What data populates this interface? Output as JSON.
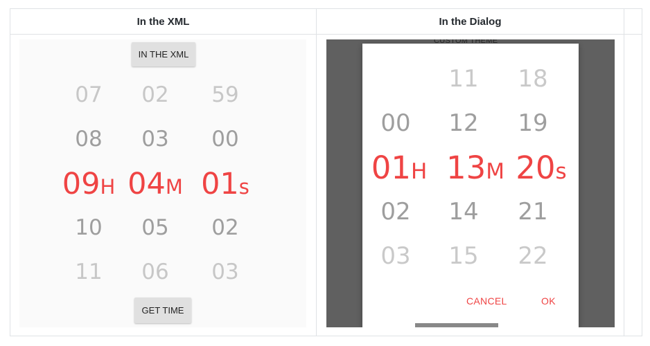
{
  "table": {
    "headers": [
      "In the XML",
      "In the Dialog"
    ]
  },
  "left": {
    "top_button": "IN THE XML",
    "bottom_button": "GET TIME",
    "hours": {
      "above2": "07",
      "above1": "08",
      "selected": "09",
      "below1": "10",
      "below2": "11",
      "unit": "H"
    },
    "minutes": {
      "above2": "02",
      "above1": "03",
      "selected": "04",
      "below1": "05",
      "below2": "06",
      "unit": "M"
    },
    "seconds": {
      "above2": "59",
      "above1": "00",
      "selected": "01",
      "below1": "02",
      "below2": "03",
      "unit": "s"
    }
  },
  "right": {
    "background_text": "CUSTOM THEME",
    "hours": {
      "above1": "00",
      "selected": "01",
      "below1": "02",
      "below2": "03",
      "unit": "H"
    },
    "minutes": {
      "above2": "11",
      "above1": "12",
      "selected": "13",
      "below1": "14",
      "below2": "15",
      "unit": "M"
    },
    "seconds": {
      "above2": "18",
      "above1": "19",
      "selected": "20",
      "below1": "21",
      "below2": "22",
      "unit": "s"
    },
    "cancel": "CANCEL",
    "ok": "OK"
  },
  "colors": {
    "accent": "#ef4444",
    "muted": "#9e9e9e",
    "scrim": "#606060",
    "border": "#dfe2e5"
  }
}
